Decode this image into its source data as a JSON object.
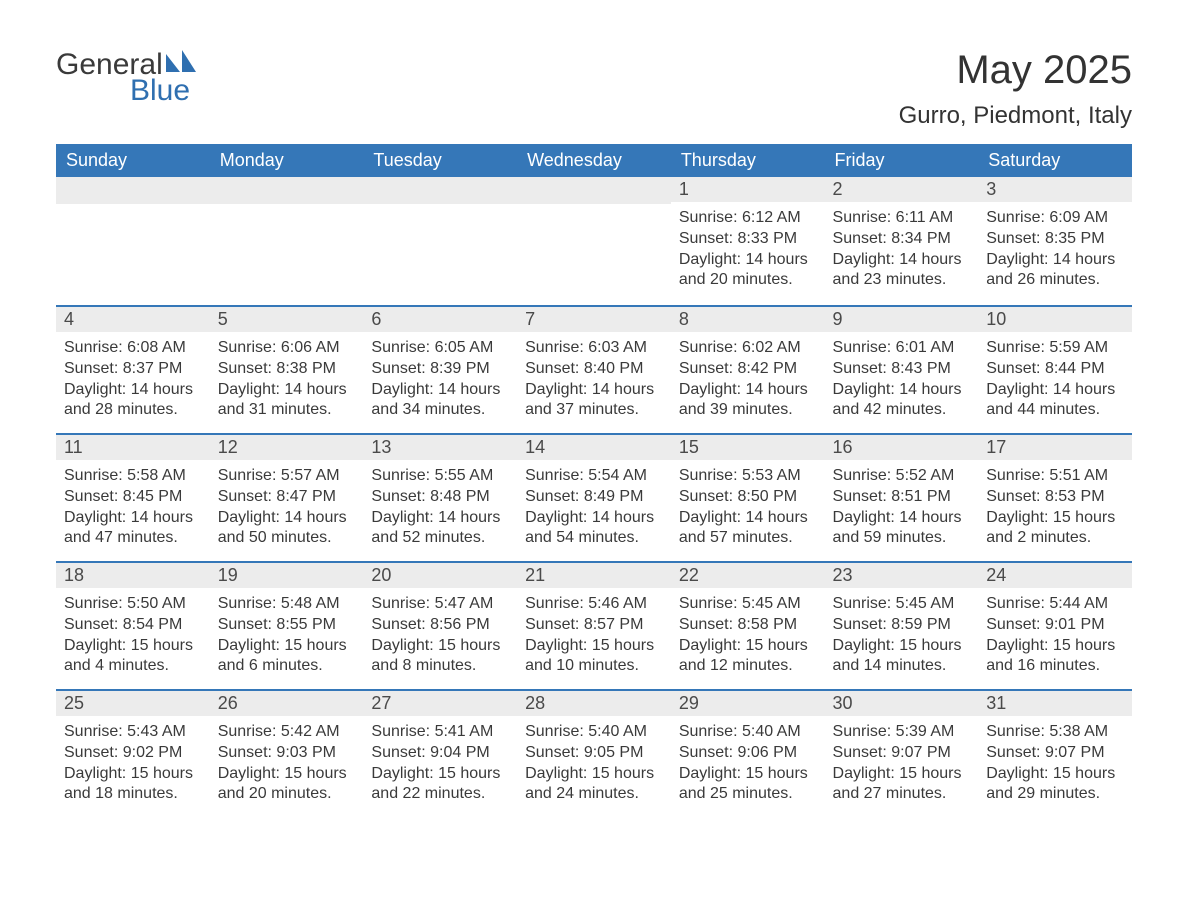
{
  "logo": {
    "text1": "General",
    "text2": "Blue",
    "brand_color": "#2f6fb0"
  },
  "title": "May 2025",
  "subtitle": "Gurro, Piedmont, Italy",
  "colors": {
    "header_bg": "#3577b8",
    "header_text": "#ffffff",
    "daynum_bg": "#ececec",
    "week_border": "#3577b8",
    "body_text": "#3a3a3a",
    "page_bg": "#ffffff"
  },
  "fontsize": {
    "title": 40,
    "subtitle": 24,
    "th": 18,
    "daynum": 18,
    "body": 16
  },
  "font_family": "Segoe UI",
  "week_day_names": [
    "Sunday",
    "Monday",
    "Tuesday",
    "Wednesday",
    "Thursday",
    "Friday",
    "Saturday"
  ],
  "start_day_index": 4,
  "labels": {
    "sunrise": "Sunrise:",
    "sunset": "Sunset:",
    "daylight": "Daylight:"
  },
  "days": [
    {
      "n": 1,
      "sunrise": "6:12 AM",
      "sunset": "8:33 PM",
      "daylight": "14 hours and 20 minutes."
    },
    {
      "n": 2,
      "sunrise": "6:11 AM",
      "sunset": "8:34 PM",
      "daylight": "14 hours and 23 minutes."
    },
    {
      "n": 3,
      "sunrise": "6:09 AM",
      "sunset": "8:35 PM",
      "daylight": "14 hours and 26 minutes."
    },
    {
      "n": 4,
      "sunrise": "6:08 AM",
      "sunset": "8:37 PM",
      "daylight": "14 hours and 28 minutes."
    },
    {
      "n": 5,
      "sunrise": "6:06 AM",
      "sunset": "8:38 PM",
      "daylight": "14 hours and 31 minutes."
    },
    {
      "n": 6,
      "sunrise": "6:05 AM",
      "sunset": "8:39 PM",
      "daylight": "14 hours and 34 minutes."
    },
    {
      "n": 7,
      "sunrise": "6:03 AM",
      "sunset": "8:40 PM",
      "daylight": "14 hours and 37 minutes."
    },
    {
      "n": 8,
      "sunrise": "6:02 AM",
      "sunset": "8:42 PM",
      "daylight": "14 hours and 39 minutes."
    },
    {
      "n": 9,
      "sunrise": "6:01 AM",
      "sunset": "8:43 PM",
      "daylight": "14 hours and 42 minutes."
    },
    {
      "n": 10,
      "sunrise": "5:59 AM",
      "sunset": "8:44 PM",
      "daylight": "14 hours and 44 minutes."
    },
    {
      "n": 11,
      "sunrise": "5:58 AM",
      "sunset": "8:45 PM",
      "daylight": "14 hours and 47 minutes."
    },
    {
      "n": 12,
      "sunrise": "5:57 AM",
      "sunset": "8:47 PM",
      "daylight": "14 hours and 50 minutes."
    },
    {
      "n": 13,
      "sunrise": "5:55 AM",
      "sunset": "8:48 PM",
      "daylight": "14 hours and 52 minutes."
    },
    {
      "n": 14,
      "sunrise": "5:54 AM",
      "sunset": "8:49 PM",
      "daylight": "14 hours and 54 minutes."
    },
    {
      "n": 15,
      "sunrise": "5:53 AM",
      "sunset": "8:50 PM",
      "daylight": "14 hours and 57 minutes."
    },
    {
      "n": 16,
      "sunrise": "5:52 AM",
      "sunset": "8:51 PM",
      "daylight": "14 hours and 59 minutes."
    },
    {
      "n": 17,
      "sunrise": "5:51 AM",
      "sunset": "8:53 PM",
      "daylight": "15 hours and 2 minutes."
    },
    {
      "n": 18,
      "sunrise": "5:50 AM",
      "sunset": "8:54 PM",
      "daylight": "15 hours and 4 minutes."
    },
    {
      "n": 19,
      "sunrise": "5:48 AM",
      "sunset": "8:55 PM",
      "daylight": "15 hours and 6 minutes."
    },
    {
      "n": 20,
      "sunrise": "5:47 AM",
      "sunset": "8:56 PM",
      "daylight": "15 hours and 8 minutes."
    },
    {
      "n": 21,
      "sunrise": "5:46 AM",
      "sunset": "8:57 PM",
      "daylight": "15 hours and 10 minutes."
    },
    {
      "n": 22,
      "sunrise": "5:45 AM",
      "sunset": "8:58 PM",
      "daylight": "15 hours and 12 minutes."
    },
    {
      "n": 23,
      "sunrise": "5:45 AM",
      "sunset": "8:59 PM",
      "daylight": "15 hours and 14 minutes."
    },
    {
      "n": 24,
      "sunrise": "5:44 AM",
      "sunset": "9:01 PM",
      "daylight": "15 hours and 16 minutes."
    },
    {
      "n": 25,
      "sunrise": "5:43 AM",
      "sunset": "9:02 PM",
      "daylight": "15 hours and 18 minutes."
    },
    {
      "n": 26,
      "sunrise": "5:42 AM",
      "sunset": "9:03 PM",
      "daylight": "15 hours and 20 minutes."
    },
    {
      "n": 27,
      "sunrise": "5:41 AM",
      "sunset": "9:04 PM",
      "daylight": "15 hours and 22 minutes."
    },
    {
      "n": 28,
      "sunrise": "5:40 AM",
      "sunset": "9:05 PM",
      "daylight": "15 hours and 24 minutes."
    },
    {
      "n": 29,
      "sunrise": "5:40 AM",
      "sunset": "9:06 PM",
      "daylight": "15 hours and 25 minutes."
    },
    {
      "n": 30,
      "sunrise": "5:39 AM",
      "sunset": "9:07 PM",
      "daylight": "15 hours and 27 minutes."
    },
    {
      "n": 31,
      "sunrise": "5:38 AM",
      "sunset": "9:07 PM",
      "daylight": "15 hours and 29 minutes."
    }
  ]
}
